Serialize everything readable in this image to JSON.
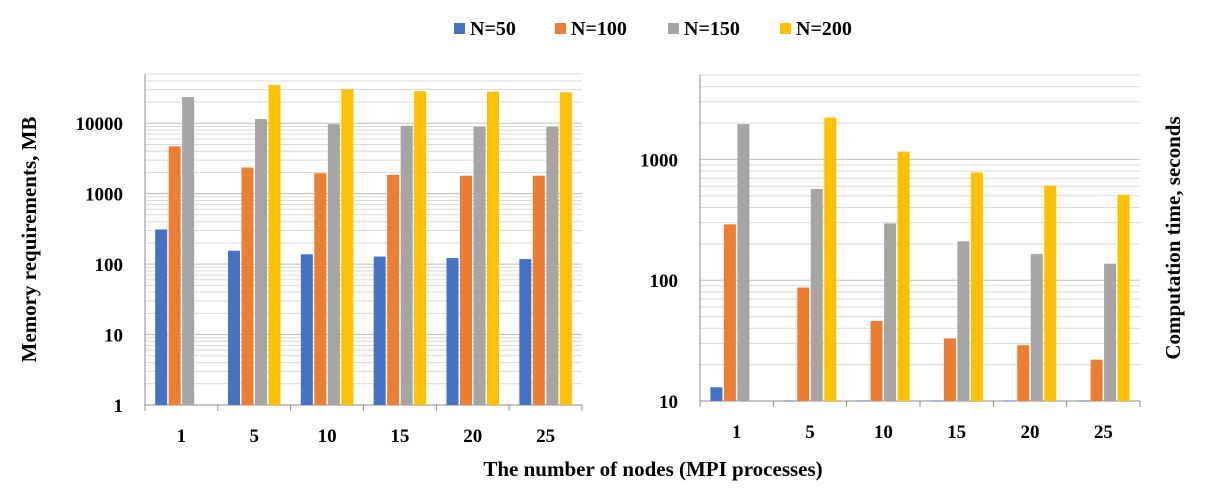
{
  "legend": [
    {
      "name": "N=50",
      "color": "#4472C4"
    },
    {
      "name": "N=100",
      "color": "#ED7D31"
    },
    {
      "name": "N=150",
      "color": "#A5A5A5"
    },
    {
      "name": "N=200",
      "color": "#FFC000"
    }
  ],
  "xlabel": "The number of nodes (MPI processes)",
  "chart_data": [
    {
      "type": "bar",
      "y_scale": "log",
      "ylabel": "Memory requirements, MB",
      "ylim": [
        1,
        50000
      ],
      "yticks": [
        "1",
        "10",
        "100",
        "1000",
        "10000"
      ],
      "ytick_values": [
        1,
        10,
        100,
        1000,
        10000
      ],
      "categories": [
        "1",
        "5",
        "10",
        "15",
        "20",
        "25"
      ],
      "xlabel": "The number of nodes (MPI processes)",
      "legend_position": "top",
      "grid": true,
      "series": [
        {
          "name": "N=50",
          "color": "#4472C4",
          "values": [
            310,
            155,
            138,
            128,
            122,
            118
          ]
        },
        {
          "name": "N=100",
          "color": "#ED7D31",
          "values": [
            4700,
            2350,
            1950,
            1850,
            1800,
            1800
          ]
        },
        {
          "name": "N=150",
          "color": "#A5A5A5",
          "values": [
            23500,
            11500,
            9700,
            9200,
            8900,
            8900
          ]
        },
        {
          "name": "N=200",
          "color": "#FFC000",
          "values": [
            null,
            35000,
            30500,
            28500,
            28000,
            27500
          ]
        }
      ]
    },
    {
      "type": "bar",
      "y_scale": "log",
      "ylabel": "Computation time, seconds",
      "ylim": [
        10,
        5000
      ],
      "yticks": [
        "10",
        "100",
        "1000"
      ],
      "ytick_values": [
        10,
        100,
        1000
      ],
      "categories": [
        "1",
        "5",
        "10",
        "15",
        "20",
        "25"
      ],
      "xlabel": "The number of nodes (MPI processes)",
      "legend_position": "top",
      "grid": true,
      "series": [
        {
          "name": "N=50",
          "color": "#4472C4",
          "values": [
            13,
            10.1,
            10.1,
            10.1,
            10.1,
            10.1
          ]
        },
        {
          "name": "N=100",
          "color": "#ED7D31",
          "values": [
            290,
            87,
            46,
            33,
            29,
            22
          ]
        },
        {
          "name": "N=150",
          "color": "#A5A5A5",
          "values": [
            1960,
            570,
            295,
            210,
            165,
            137
          ]
        },
        {
          "name": "N=200",
          "color": "#FFC000",
          "values": [
            null,
            2220,
            1160,
            780,
            605,
            510
          ]
        }
      ]
    }
  ]
}
